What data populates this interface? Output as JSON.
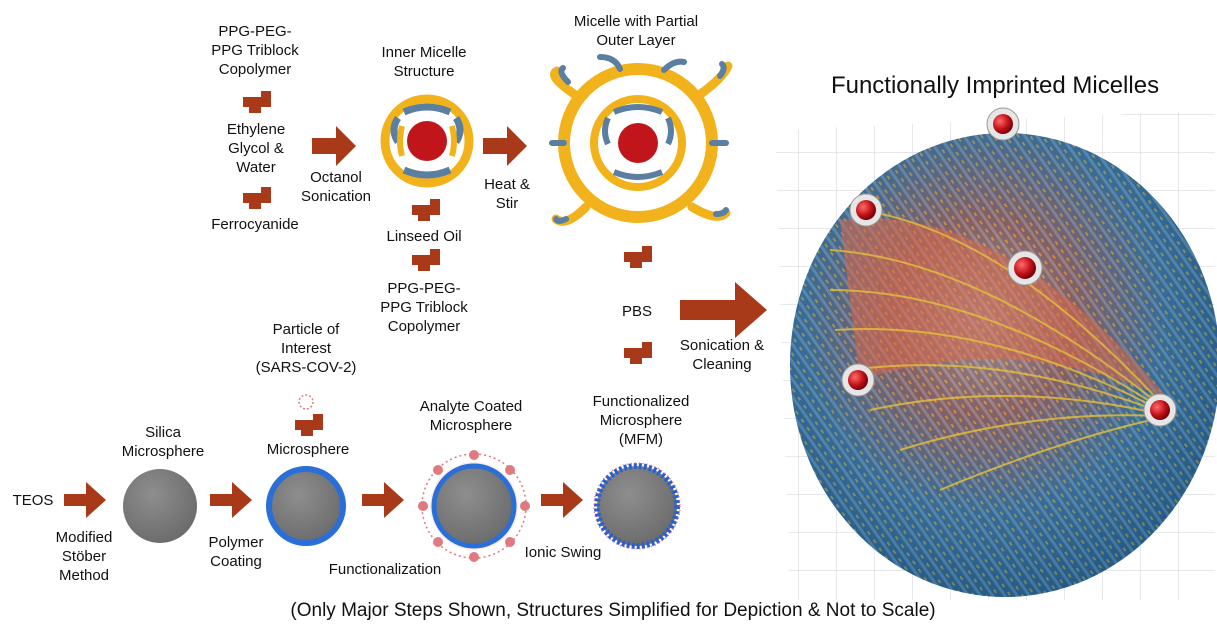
{
  "title": "Functionally Imprinted Micelles",
  "caption": "(Only Major Steps Shown, Structures Simplified for Depiction & Not to Scale)",
  "top_row": {
    "reagent1": "PPG-PEG-\nPPG Triblock\nCopolymer",
    "reagent2": "Ethylene\nGlycol &\nWater",
    "reagent3": "Ferrocyanide",
    "step1": "Octanol\nSonication",
    "inner_micelle_label": "Inner Micelle\nStructure",
    "linseed_oil": "Linseed Oil",
    "reagent4": "PPG-PEG-\nPPG Triblock\nCopolymer",
    "step2": "Heat &\nStir",
    "partial_micelle_label": "Micelle with Partial\nOuter Layer",
    "pbs": "PBS",
    "step3": "Sonication &\nCleaning"
  },
  "bottom_row": {
    "teos": "TEOS",
    "step_stober": "Modified\nStöber\nMethod",
    "silica_label": "Silica\nMicrosphere",
    "particle_label": "Particle of\nInterest\n(SARS-COV-2)",
    "microsphere_label": "Microsphere",
    "step_coating": "Polymer\nCoating",
    "step_functionalization": "Functionalization",
    "analyte_label": "Analyte Coated\nMicrosphere",
    "step_ionic": "Ionic Swing",
    "mfm_label": "Functionalized\nMicrosphere\n(MFM)"
  },
  "colors": {
    "arrow": "#a83a1a",
    "plus": "#a83a1a",
    "core_red": "#c0161b",
    "micelle_yellow": "#f2b21c",
    "micelle_blue": "#5a7fa0",
    "sphere_gray": "#7a7a7a",
    "coating_blue": "#2a6fd8",
    "analyte_pink": "#e07a80",
    "imprint_blue": "#2d6f9e"
  }
}
